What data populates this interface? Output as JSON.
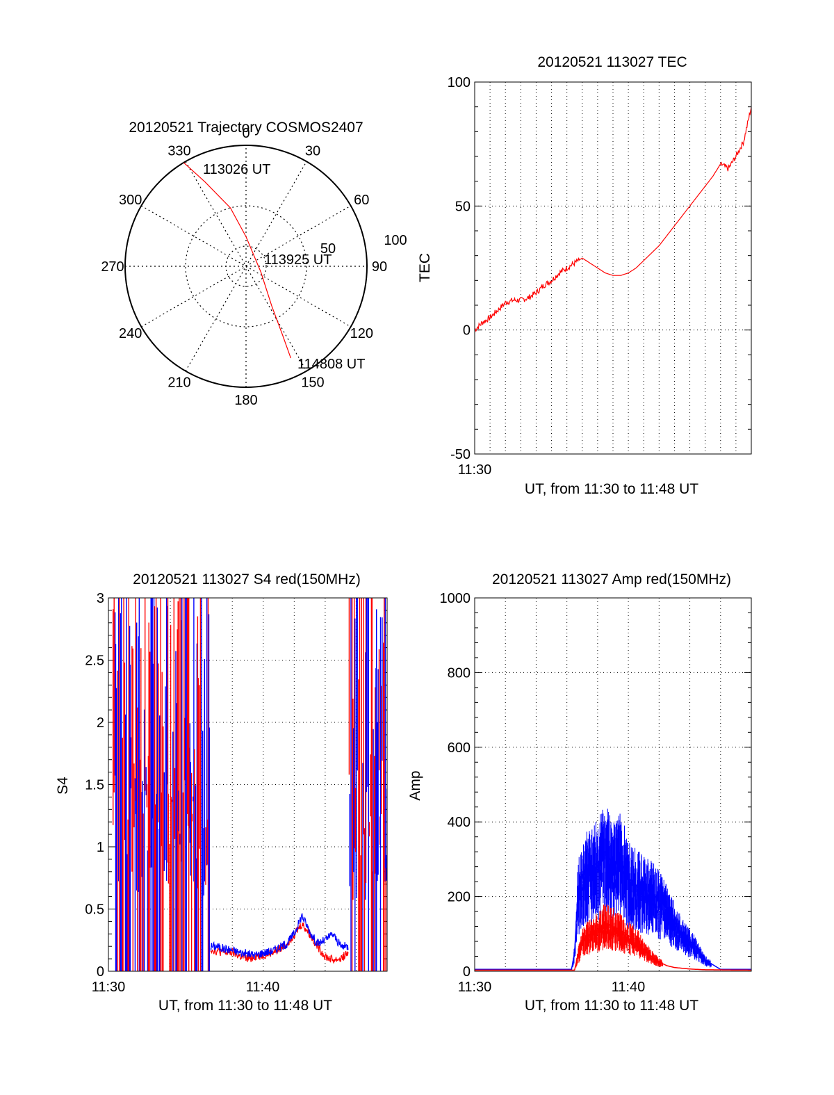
{
  "chart_data": [
    {
      "type": "polar",
      "title": "20120521 Trajectory COSMOS2407",
      "angle_labels": [
        "0",
        "30",
        "60",
        "90",
        "120",
        "150",
        "180",
        "210",
        "240",
        "270",
        "300",
        "330"
      ],
      "radius_labels": [
        "50",
        "100"
      ],
      "trajectory": {
        "color": "#ff0000",
        "points": [
          {
            "azimuth": 329,
            "zenith": 90
          },
          {
            "azimuth": 334,
            "zenith": 70
          },
          {
            "azimuth": 345,
            "zenith": 45
          },
          {
            "azimuth": 360,
            "zenith": 22
          },
          {
            "azimuth": 112,
            "zenith": 12
          },
          {
            "azimuth": 147,
            "zenith": 35
          },
          {
            "azimuth": 152,
            "zenith": 58
          },
          {
            "azimuth": 154,
            "zenith": 76
          }
        ]
      },
      "annotations": [
        "113026 UT",
        "113925 UT",
        "114808 UT"
      ]
    },
    {
      "type": "line",
      "title": "20120521 113027 TEC",
      "xlabel": "UT, from 11:30 to 11:48 UT",
      "ylabel": "TEC",
      "xlim": [
        0,
        18
      ],
      "ylim": [
        -50,
        100
      ],
      "x_tick_labels": [
        "11:30"
      ],
      "y_tick_labels": [
        "-50",
        "0",
        "50",
        "100"
      ],
      "series": [
        {
          "color": "#ff0000",
          "x": [
            0,
            0.5,
            1,
            1.5,
            2,
            2.5,
            3,
            3.5,
            4,
            4.5,
            5,
            5.5,
            6,
            6.5,
            7,
            7.5,
            8,
            8.5,
            9,
            9.5,
            10,
            10.5,
            11,
            11.5,
            12,
            12.5,
            13,
            13.5,
            14,
            14.5,
            15,
            15.5,
            16,
            16.5,
            17,
            17.5,
            18
          ],
          "y": [
            0,
            3,
            5,
            8,
            11,
            12,
            12,
            13,
            15,
            18,
            20,
            23,
            25,
            27,
            29,
            27,
            25,
            23,
            22,
            22,
            23,
            25,
            28,
            31,
            34,
            38,
            42,
            46,
            50,
            54,
            58,
            62,
            67,
            65,
            70,
            76,
            90
          ]
        }
      ]
    },
    {
      "type": "line",
      "title": "20120521 113027 S4 red(150MHz)",
      "xlabel": "UT, from 11:30 to 11:48 UT",
      "ylabel": "S4",
      "xlim": [
        0,
        18
      ],
      "ylim": [
        0,
        3
      ],
      "x_tick_labels": [
        "11:30",
        "11:40"
      ],
      "y_tick_labels": [
        "0",
        "0.5",
        "1",
        "1.5",
        "2",
        "2.5",
        "3"
      ],
      "series": [
        {
          "color": "#ff0000",
          "x": [
            6.6,
            7,
            7.5,
            8,
            8.5,
            9,
            9.5,
            10,
            10.5,
            11,
            11.5,
            12,
            12.5,
            13,
            13.5,
            14,
            14.5,
            15,
            15.5
          ],
          "y": [
            0.18,
            0.16,
            0.15,
            0.15,
            0.12,
            0.1,
            0.12,
            0.13,
            0.15,
            0.17,
            0.22,
            0.3,
            0.38,
            0.3,
            0.2,
            0.12,
            0.09,
            0.1,
            0.15
          ]
        },
        {
          "color": "#0000ff",
          "x": [
            6.6,
            7,
            7.5,
            8,
            8.5,
            9,
            9.5,
            10,
            10.5,
            11,
            11.5,
            12,
            12.5,
            13,
            13.5,
            14,
            14.5,
            15,
            15.5
          ],
          "y": [
            0.2,
            0.2,
            0.18,
            0.17,
            0.15,
            0.14,
            0.13,
            0.15,
            0.16,
            0.19,
            0.22,
            0.3,
            0.45,
            0.32,
            0.22,
            0.25,
            0.3,
            0.2,
            0.2
          ]
        }
      ]
    },
    {
      "type": "line",
      "title": "20120521 113027 Amp red(150MHz)",
      "xlabel": "UT, from 11:30 to 11:48 UT",
      "ylabel": "Amp",
      "xlim": [
        0,
        18
      ],
      "ylim": [
        0,
        1000
      ],
      "x_tick_labels": [
        "11:30",
        "11:40"
      ],
      "y_tick_labels": [
        "0",
        "200",
        "400",
        "600",
        "800",
        "1000"
      ],
      "series": [
        {
          "color": "#0000ff",
          "x": [
            0,
            6.3,
            6.5,
            6.7,
            7,
            7.5,
            8,
            8.5,
            9,
            9.5,
            10,
            10.5,
            11,
            11.5,
            12,
            12.5,
            13,
            13.5,
            14,
            14.5,
            15,
            16,
            18
          ],
          "y": [
            5,
            5,
            50,
            200,
            260,
            280,
            290,
            320,
            280,
            300,
            250,
            230,
            220,
            210,
            190,
            170,
            130,
            100,
            80,
            60,
            30,
            5,
            5
          ]
        },
        {
          "color": "#ff0000",
          "x": [
            0,
            6.5,
            6.7,
            7,
            7.5,
            8,
            8.5,
            9,
            9.5,
            10,
            10.5,
            11,
            11.5,
            12,
            12.5,
            13,
            14,
            15,
            18
          ],
          "y": [
            3,
            3,
            40,
            80,
            100,
            110,
            130,
            120,
            110,
            95,
            85,
            60,
            40,
            25,
            15,
            10,
            6,
            4,
            3
          ]
        }
      ]
    }
  ]
}
